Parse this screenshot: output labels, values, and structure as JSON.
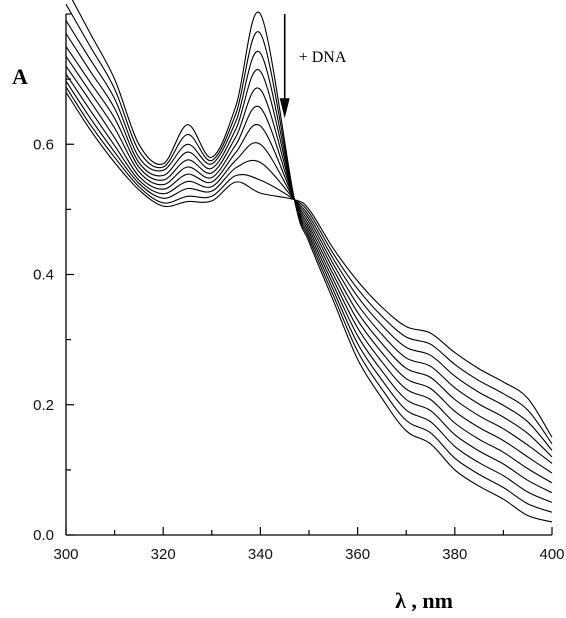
{
  "chart_data": {
    "type": "line",
    "title": "",
    "ylabel": "A",
    "xlabel": "λ , nm",
    "xlim": [
      300,
      400
    ],
    "ylim": [
      0.0,
      0.8
    ],
    "xticks": [
      300,
      320,
      340,
      360,
      380,
      400
    ],
    "xtick_labels": [
      "300",
      "320",
      "340",
      "360",
      "380",
      "400"
    ],
    "yticks": [
      0.0,
      0.2,
      0.4,
      0.6
    ],
    "ytick_labels": [
      "0.0",
      "0.2",
      "0.4",
      "0.6"
    ],
    "grid": false,
    "annotation": {
      "text": "+ DNA",
      "arrow_x": 345,
      "arrow_from_y": 0.8,
      "arrow_to_y": 0.64
    },
    "isosbestic_point": {
      "x": 347,
      "y": 0.515
    },
    "x": [
      300,
      305,
      310,
      315,
      320,
      325,
      330,
      335,
      340,
      347,
      350,
      355,
      360,
      365,
      370,
      375,
      380,
      385,
      390,
      395,
      400
    ],
    "series": [
      {
        "values": [
          0.84,
          0.77,
          0.7,
          0.6,
          0.57,
          0.63,
          0.58,
          0.66,
          0.8,
          0.515,
          0.45,
          0.36,
          0.27,
          0.21,
          0.16,
          0.14,
          0.1,
          0.075,
          0.055,
          0.03,
          0.02
        ]
      },
      {
        "values": [
          0.815,
          0.75,
          0.685,
          0.59,
          0.565,
          0.615,
          0.575,
          0.648,
          0.77,
          0.515,
          0.455,
          0.368,
          0.282,
          0.224,
          0.176,
          0.157,
          0.118,
          0.093,
          0.073,
          0.048,
          0.035
        ]
      },
      {
        "values": [
          0.79,
          0.73,
          0.67,
          0.58,
          0.56,
          0.6,
          0.57,
          0.636,
          0.74,
          0.515,
          0.46,
          0.376,
          0.294,
          0.238,
          0.192,
          0.174,
          0.136,
          0.111,
          0.091,
          0.066,
          0.05
        ]
      },
      {
        "values": [
          0.77,
          0.712,
          0.655,
          0.572,
          0.552,
          0.588,
          0.563,
          0.624,
          0.712,
          0.515,
          0.465,
          0.384,
          0.306,
          0.252,
          0.208,
          0.191,
          0.154,
          0.129,
          0.109,
          0.084,
          0.065
        ]
      },
      {
        "values": [
          0.75,
          0.695,
          0.64,
          0.565,
          0.545,
          0.576,
          0.556,
          0.612,
          0.684,
          0.515,
          0.47,
          0.392,
          0.318,
          0.266,
          0.224,
          0.208,
          0.172,
          0.147,
          0.127,
          0.102,
          0.08
        ]
      },
      {
        "values": [
          0.735,
          0.68,
          0.625,
          0.558,
          0.538,
          0.565,
          0.549,
          0.6,
          0.656,
          0.515,
          0.475,
          0.4,
          0.33,
          0.28,
          0.24,
          0.225,
          0.19,
          0.165,
          0.145,
          0.12,
          0.095
        ]
      },
      {
        "values": [
          0.72,
          0.666,
          0.61,
          0.551,
          0.531,
          0.554,
          0.542,
          0.588,
          0.628,
          0.515,
          0.48,
          0.408,
          0.342,
          0.294,
          0.256,
          0.242,
          0.208,
          0.183,
          0.163,
          0.138,
          0.11
        ]
      },
      {
        "values": [
          0.708,
          0.652,
          0.598,
          0.545,
          0.524,
          0.543,
          0.535,
          0.576,
          0.6,
          0.515,
          0.485,
          0.416,
          0.354,
          0.308,
          0.272,
          0.259,
          0.226,
          0.201,
          0.181,
          0.156,
          0.12
        ]
      },
      {
        "values": [
          0.697,
          0.64,
          0.588,
          0.54,
          0.517,
          0.532,
          0.528,
          0.564,
          0.572,
          0.515,
          0.49,
          0.424,
          0.366,
          0.322,
          0.288,
          0.276,
          0.244,
          0.219,
          0.199,
          0.174,
          0.13
        ]
      },
      {
        "values": [
          0.688,
          0.63,
          0.58,
          0.535,
          0.51,
          0.52,
          0.52,
          0.552,
          0.545,
          0.515,
          0.495,
          0.432,
          0.378,
          0.336,
          0.304,
          0.293,
          0.262,
          0.237,
          0.217,
          0.192,
          0.14
        ]
      },
      {
        "values": [
          0.68,
          0.622,
          0.572,
          0.53,
          0.505,
          0.512,
          0.513,
          0.542,
          0.525,
          0.515,
          0.5,
          0.44,
          0.39,
          0.35,
          0.32,
          0.31,
          0.28,
          0.255,
          0.235,
          0.21,
          0.15
        ]
      }
    ]
  }
}
